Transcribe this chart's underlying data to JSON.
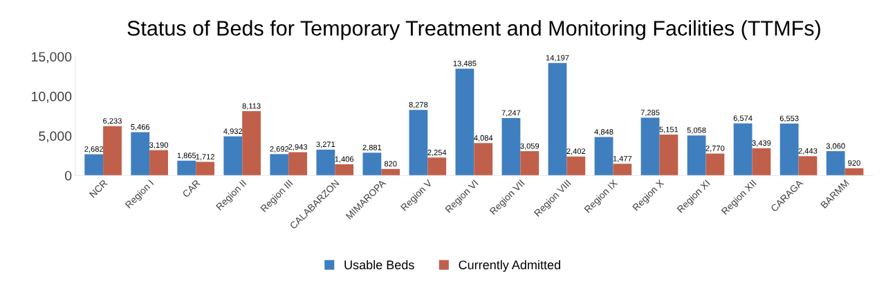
{
  "chart_data": {
    "type": "bar",
    "title": "Status of Beds for Temporary Treatment and Monitoring Facilities (TTMFs)",
    "categories": [
      "NCR",
      "Region I",
      "CAR",
      "Region II",
      "Region III",
      "CALABARZON",
      "MIMAROPA",
      "Region V",
      "Region VI",
      "Region VII",
      "Region VIII",
      "Region IX",
      "Region X",
      "Region XI",
      "Region XII",
      "CARAGA",
      "BARMM"
    ],
    "series": [
      {
        "name": "Usable Beds",
        "color": "#3f7fbf",
        "values": [
          2682,
          5466,
          1865,
          4932,
          2692,
          3271,
          2881,
          8278,
          13485,
          7247,
          14197,
          4848,
          7285,
          5058,
          6574,
          6553,
          3060
        ],
        "value_labels": [
          "2,682",
          "5,466",
          "1,865",
          "4,932",
          "2,692",
          "3,271",
          "2,881",
          "8,278",
          "13,485",
          "7,247",
          "14,197",
          "4,848",
          "7,285",
          "5,058",
          "6,574",
          "6,553",
          "3,060"
        ]
      },
      {
        "name": "Currently Admitted",
        "color": "#c0604a",
        "values": [
          6233,
          3190,
          1712,
          8113,
          2943,
          1406,
          820,
          2254,
          4084,
          3059,
          2402,
          1477,
          5151,
          2770,
          3439,
          2443,
          920
        ],
        "value_labels": [
          "6,233",
          "3,190",
          "1,712",
          "8,113",
          "2,943",
          "1,406",
          "820",
          "2,254",
          "4,084",
          "3,059",
          "2,402",
          "1,477",
          "5,151",
          "2,770",
          "3,439",
          "2,443",
          "920"
        ]
      }
    ],
    "ylim": [
      0,
      15000
    ],
    "yticks": [
      {
        "value": 0,
        "label": "0"
      },
      {
        "value": 5000,
        "label": "5,000"
      },
      {
        "value": 10000,
        "label": "10,000"
      },
      {
        "value": 15000,
        "label": "15,000"
      }
    ],
    "grid": false,
    "legend": "bottom"
  }
}
